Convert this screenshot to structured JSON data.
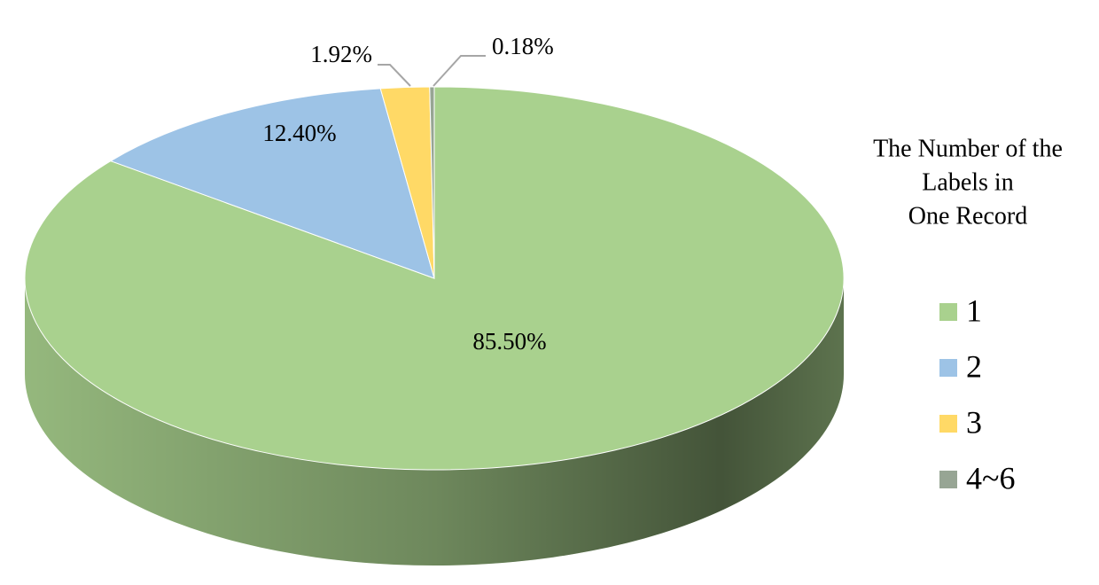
{
  "chart_data": {
    "type": "pie",
    "categories": [
      "1",
      "2",
      "3",
      "4~6"
    ],
    "values": [
      85.5,
      12.4,
      1.92,
      0.18
    ],
    "value_labels": [
      "85.50%",
      "12.40%",
      "1.92%",
      "0.18%"
    ],
    "colors": [
      "#a9d18e",
      "#9dc3e6",
      "#ffd966",
      "#97a594"
    ],
    "legend_title": [
      "The Number of the",
      "Labels in",
      "One Record"
    ],
    "legend": "right"
  }
}
